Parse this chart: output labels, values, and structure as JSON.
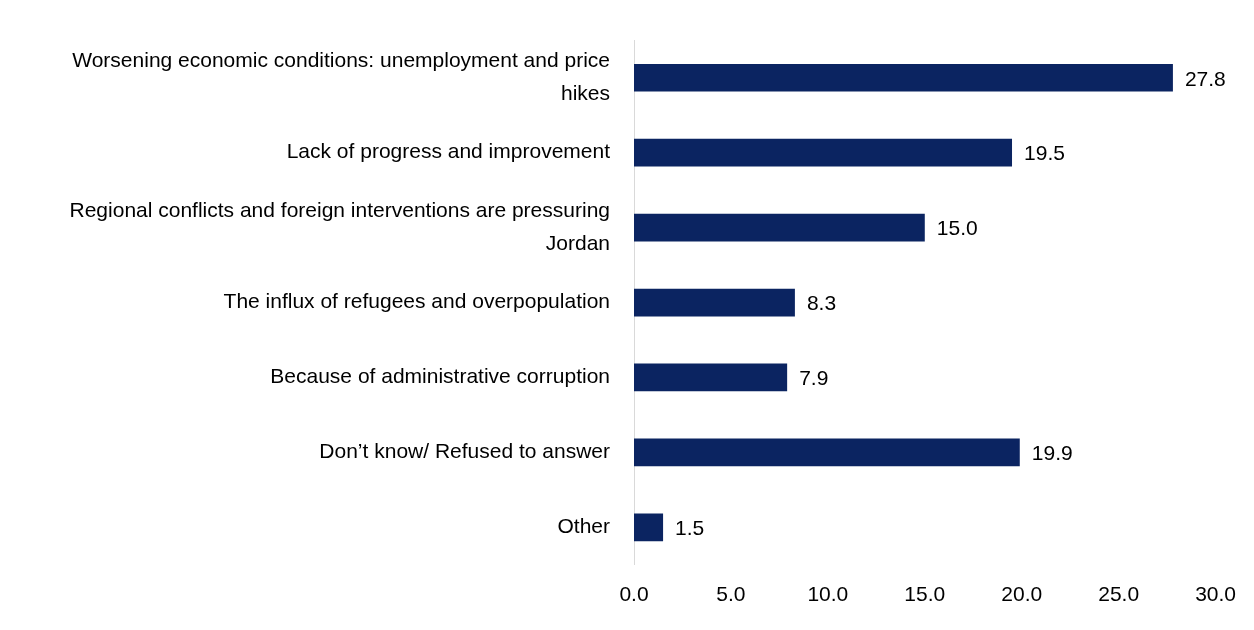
{
  "chart_data": {
    "type": "bar",
    "orientation": "horizontal",
    "categories": [
      "Worsening economic conditions: unemployment and price hikes",
      "Lack of progress and improvement",
      "Regional conflicts and foreign interventions are pressuring Jordan",
      "The influx of refugees and overpopulation",
      "Because of administrative corruption",
      "Don’t know/ Refused to answer",
      "Other"
    ],
    "values": [
      27.8,
      19.5,
      15.0,
      8.3,
      7.9,
      19.9,
      1.5
    ],
    "value_labels": [
      "27.8",
      "19.5",
      "15.0",
      "8.3",
      "7.9",
      "19.9",
      "1.5"
    ],
    "color": "#0b2461",
    "xlim": [
      0,
      30
    ],
    "xticks": [
      {
        "value": 0,
        "label": "0.0"
      },
      {
        "value": 5,
        "label": "5.0"
      },
      {
        "value": 10,
        "label": "10.0"
      },
      {
        "value": 15,
        "label": "15.0"
      },
      {
        "value": 20,
        "label": "20.0"
      },
      {
        "value": 25,
        "label": "25.0"
      },
      {
        "value": 30,
        "label": "30.0"
      }
    ],
    "grid": false,
    "legend": false
  }
}
